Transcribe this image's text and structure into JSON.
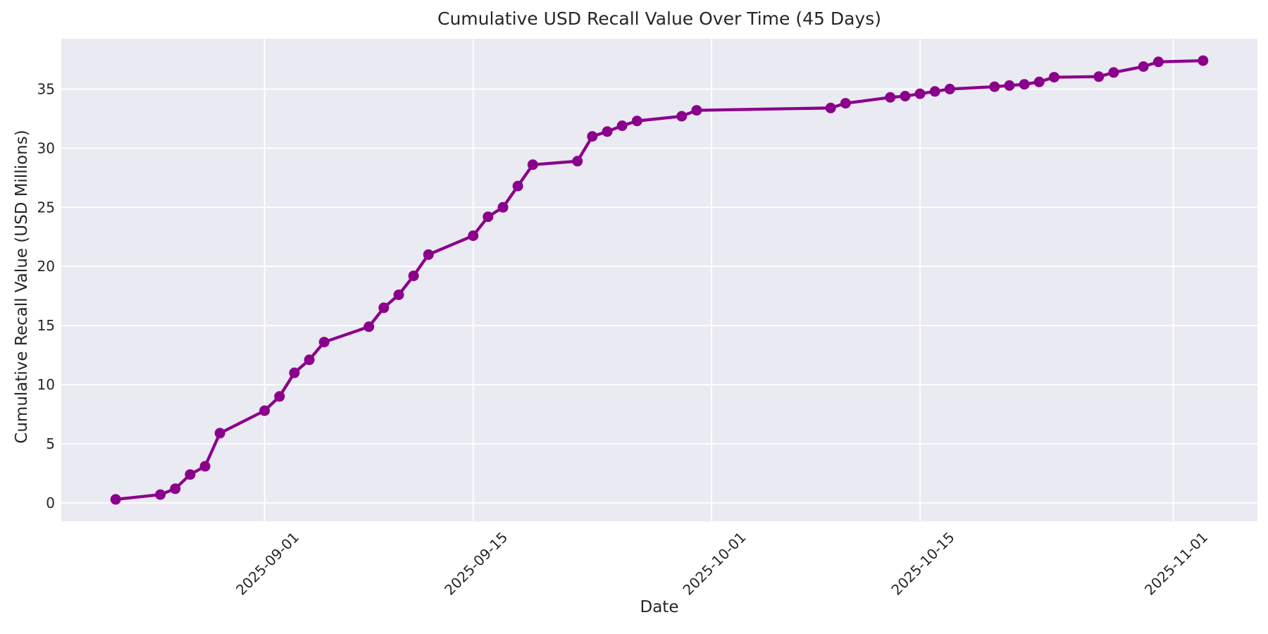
{
  "chart_data": {
    "type": "line",
    "title": "Cumulative USD Recall Value Over Time (45 Days)",
    "xlabel": "Date",
    "ylabel": "Cumulative Recall Value (USD Millions)",
    "x": [
      "2025-08-22",
      "2025-08-25",
      "2025-08-26",
      "2025-08-27",
      "2025-08-28",
      "2025-08-29",
      "2025-09-01",
      "2025-09-02",
      "2025-09-03",
      "2025-09-04",
      "2025-09-05",
      "2025-09-08",
      "2025-09-09",
      "2025-09-10",
      "2025-09-11",
      "2025-09-12",
      "2025-09-15",
      "2025-09-16",
      "2025-09-17",
      "2025-09-18",
      "2025-09-19",
      "2025-09-22",
      "2025-09-23",
      "2025-09-24",
      "2025-09-25",
      "2025-09-26",
      "2025-09-29",
      "2025-09-30",
      "2025-10-09",
      "2025-10-10",
      "2025-10-13",
      "2025-10-14",
      "2025-10-15",
      "2025-10-16",
      "2025-10-17",
      "2025-10-20",
      "2025-10-21",
      "2025-10-22",
      "2025-10-23",
      "2025-10-24",
      "2025-10-27",
      "2025-10-28",
      "2025-10-30",
      "2025-10-31",
      "2025-11-03"
    ],
    "y": [
      0.3,
      0.7,
      1.2,
      2.4,
      3.1,
      5.9,
      7.8,
      9.0,
      11.0,
      12.1,
      13.6,
      14.9,
      16.5,
      17.6,
      19.2,
      21.0,
      22.6,
      24.2,
      25.0,
      26.8,
      28.6,
      28.9,
      31.0,
      31.4,
      31.9,
      32.3,
      32.7,
      33.2,
      33.4,
      33.8,
      34.3,
      34.4,
      34.6,
      34.8,
      35.0,
      35.2,
      35.3,
      35.4,
      35.6,
      36.0,
      36.05,
      36.4,
      36.9,
      37.3,
      37.4
    ],
    "x_tick_labels": [
      "2025-09-01",
      "2025-09-15",
      "2025-10-01",
      "2025-10-15",
      "2025-11-01"
    ],
    "y_ticks": [
      0,
      5,
      10,
      15,
      20,
      25,
      30,
      35
    ],
    "x_tick_rotation": 45,
    "grid": true,
    "legend": false,
    "axis_margin": 0.05,
    "line_color": "#8B008B",
    "marker": "circle",
    "plot_background": "#EAEAF2",
    "grid_color": "#FFFFFF",
    "text_color": "#262626"
  }
}
